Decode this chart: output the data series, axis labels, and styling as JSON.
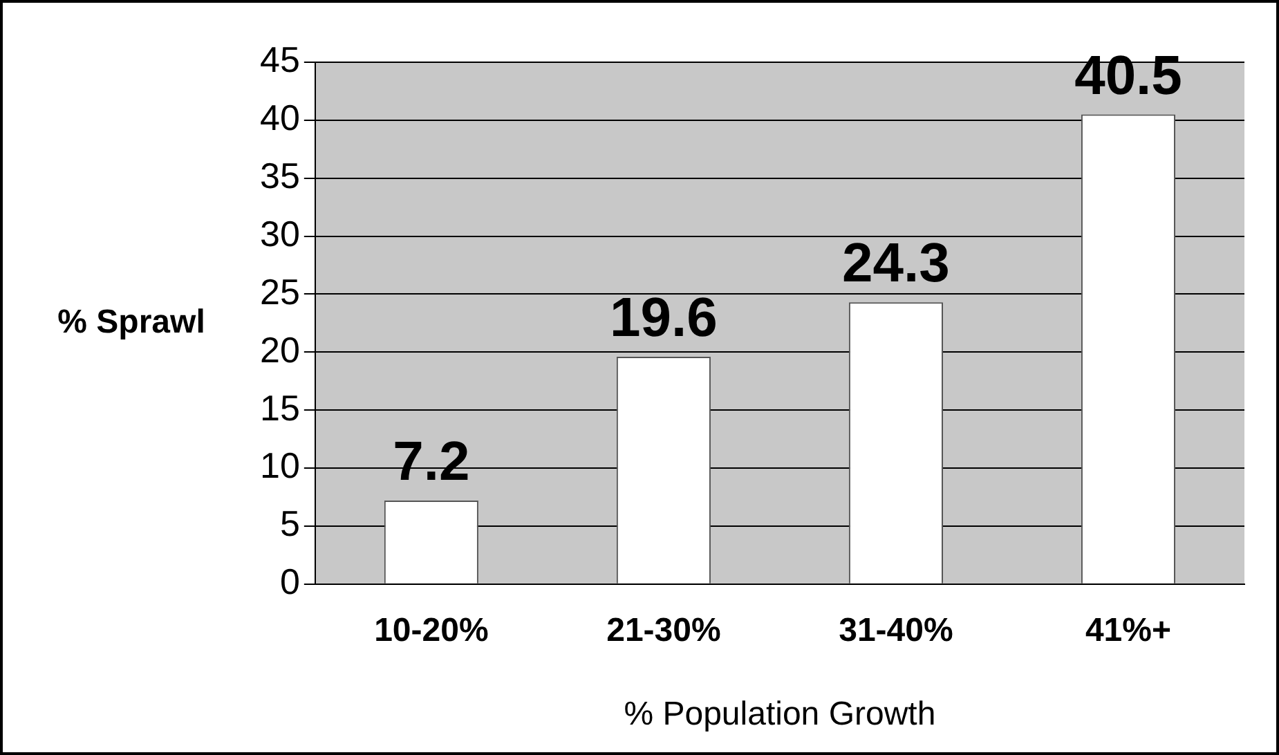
{
  "chart_data": {
    "type": "bar",
    "xlabel": "% Population Growth",
    "ylabel": "% Sprawl",
    "categories": [
      "10-20%",
      "21-30%",
      "31-40%",
      "41%+"
    ],
    "values": [
      7.2,
      19.6,
      24.3,
      40.5
    ],
    "color": "#ffffff",
    "ylim": [
      0,
      45
    ],
    "yticks": [
      0,
      5,
      10,
      15,
      20,
      25,
      30,
      35,
      40,
      45
    ],
    "grid": "y",
    "data_labels": true
  }
}
